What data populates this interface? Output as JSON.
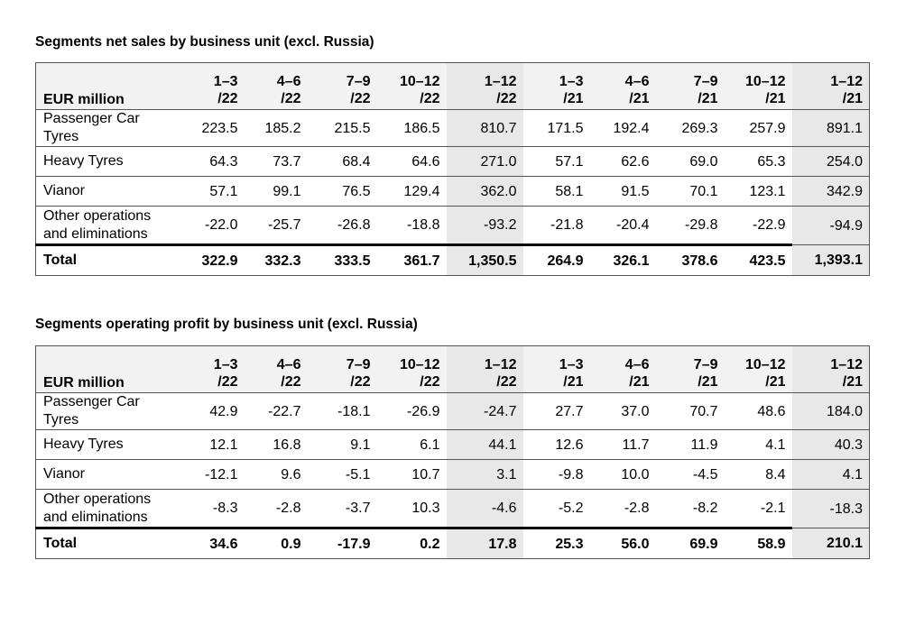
{
  "tables": [
    {
      "title": "Segments net sales by business unit (excl. Russia)",
      "unit_label": "EUR million",
      "columns": [
        [
          "1–3",
          "/22"
        ],
        [
          "4–6",
          "/22"
        ],
        [
          "7–9",
          "/22"
        ],
        [
          "10–12",
          "/22"
        ],
        [
          "1–12",
          "/22"
        ],
        [
          "1–3",
          "/21"
        ],
        [
          "4–6",
          "/21"
        ],
        [
          "7–9",
          "/21"
        ],
        [
          "10–12",
          "/21"
        ],
        [
          "1–12",
          "/21"
        ]
      ],
      "rows": [
        {
          "label": [
            "Passenger Car",
            "Tyres"
          ],
          "values": [
            "223.5",
            "185.2",
            "215.5",
            "186.5",
            "810.7",
            "171.5",
            "192.4",
            "269.3",
            "257.9",
            "891.1"
          ]
        },
        {
          "label": [
            "Heavy Tyres"
          ],
          "values": [
            "64.3",
            "73.7",
            "68.4",
            "64.6",
            "271.0",
            "57.1",
            "62.6",
            "69.0",
            "65.3",
            "254.0"
          ]
        },
        {
          "label": [
            "Vianor"
          ],
          "values": [
            "57.1",
            "99.1",
            "76.5",
            "129.4",
            "362.0",
            "58.1",
            "91.5",
            "70.1",
            "123.1",
            "342.9"
          ]
        },
        {
          "label": [
            "Other operations",
            "and eliminations"
          ],
          "values": [
            "-22.0",
            "-25.7",
            "-26.8",
            "-18.8",
            "-93.2",
            "-21.8",
            "-20.4",
            "-29.8",
            "-22.9",
            "-94.9"
          ]
        },
        {
          "label": [
            "Total"
          ],
          "values": [
            "322.9",
            "332.3",
            "333.5",
            "361.7",
            "1,350.5",
            "264.9",
            "326.1",
            "378.6",
            "423.5",
            "1,393.1"
          ]
        }
      ]
    },
    {
      "title": "Segments operating profit by business unit (excl. Russia)",
      "unit_label": "EUR million",
      "columns": [
        [
          "1–3",
          "/22"
        ],
        [
          "4–6",
          "/22"
        ],
        [
          "7–9",
          "/22"
        ],
        [
          "10–12",
          "/22"
        ],
        [
          "1–12",
          "/22"
        ],
        [
          "1–3",
          "/21"
        ],
        [
          "4–6",
          "/21"
        ],
        [
          "7–9",
          "/21"
        ],
        [
          "10–12",
          "/21"
        ],
        [
          "1–12",
          "/21"
        ]
      ],
      "rows": [
        {
          "label": [
            "Passenger Car",
            "Tyres"
          ],
          "values": [
            "42.9",
            "-22.7",
            "-18.1",
            "-26.9",
            "-24.7",
            "27.7",
            "37.0",
            "70.7",
            "48.6",
            "184.0"
          ]
        },
        {
          "label": [
            "Heavy Tyres"
          ],
          "values": [
            "12.1",
            "16.8",
            "9.1",
            "6.1",
            "44.1",
            "12.6",
            "11.7",
            "11.9",
            "4.1",
            "40.3"
          ]
        },
        {
          "label": [
            "Vianor"
          ],
          "values": [
            "-12.1",
            "9.6",
            "-5.1",
            "10.7",
            "3.1",
            "-9.8",
            "10.0",
            "-4.5",
            "8.4",
            "4.1"
          ]
        },
        {
          "label": [
            "Other operations",
            "and eliminations"
          ],
          "values": [
            "-8.3",
            "-2.8",
            "-3.7",
            "10.3",
            "-4.6",
            "-5.2",
            "-2.8",
            "-8.2",
            "-2.1",
            "-18.3"
          ]
        },
        {
          "label": [
            "Total"
          ],
          "values": [
            "34.6",
            "0.9",
            "-17.9",
            "0.2",
            "17.8",
            "25.3",
            "56.0",
            "69.9",
            "58.9",
            "210.1"
          ]
        }
      ]
    }
  ]
}
